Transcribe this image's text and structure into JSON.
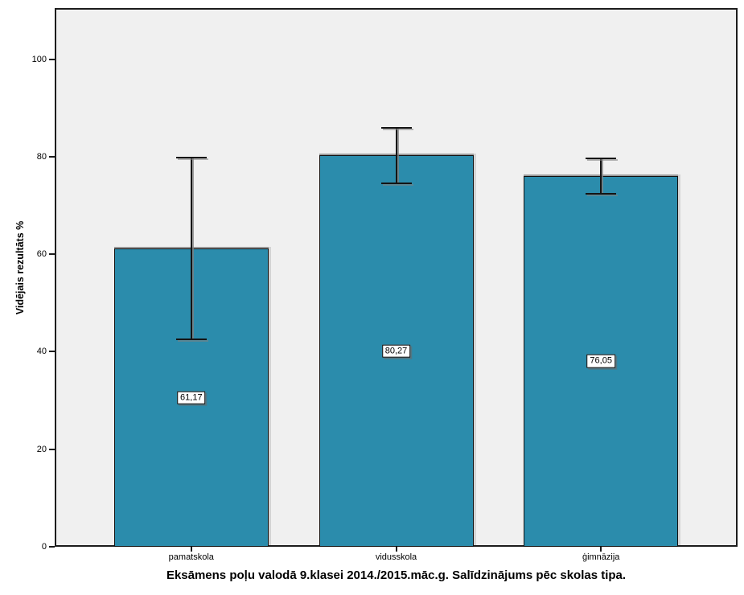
{
  "chart_data": {
    "type": "bar",
    "title": "Eksāmens poļu valodā 9.klasei 2014./2015.māc.g. Salīdzinājums pēc skolas tipa.",
    "ylabel": "Vidējais rezultāts %",
    "xlabel": "",
    "categories": [
      "pamatskola",
      "vidusskola",
      "ģimnāzija"
    ],
    "values": [
      61.17,
      80.27,
      76.05
    ],
    "value_labels": [
      "61,17",
      "80,27",
      "76,05"
    ],
    "error_bars": {
      "upper": [
        79.8,
        86.0,
        79.7
      ],
      "lower": [
        42.5,
        74.5,
        72.4
      ]
    },
    "y_ticks": [
      0,
      20,
      40,
      60,
      80,
      100
    ],
    "y_tick_labels": [
      "0",
      "20",
      "40",
      "60",
      "80",
      "100"
    ],
    "ylim": [
      0,
      110.5
    ],
    "grid": false,
    "legend_position": "none",
    "bar_color": "#2B8CAC",
    "bar_border_color": "#111111",
    "error_bar_color": "#141414",
    "plot_background": "#F0F0F0",
    "figure_background": "#FFFFFF"
  }
}
